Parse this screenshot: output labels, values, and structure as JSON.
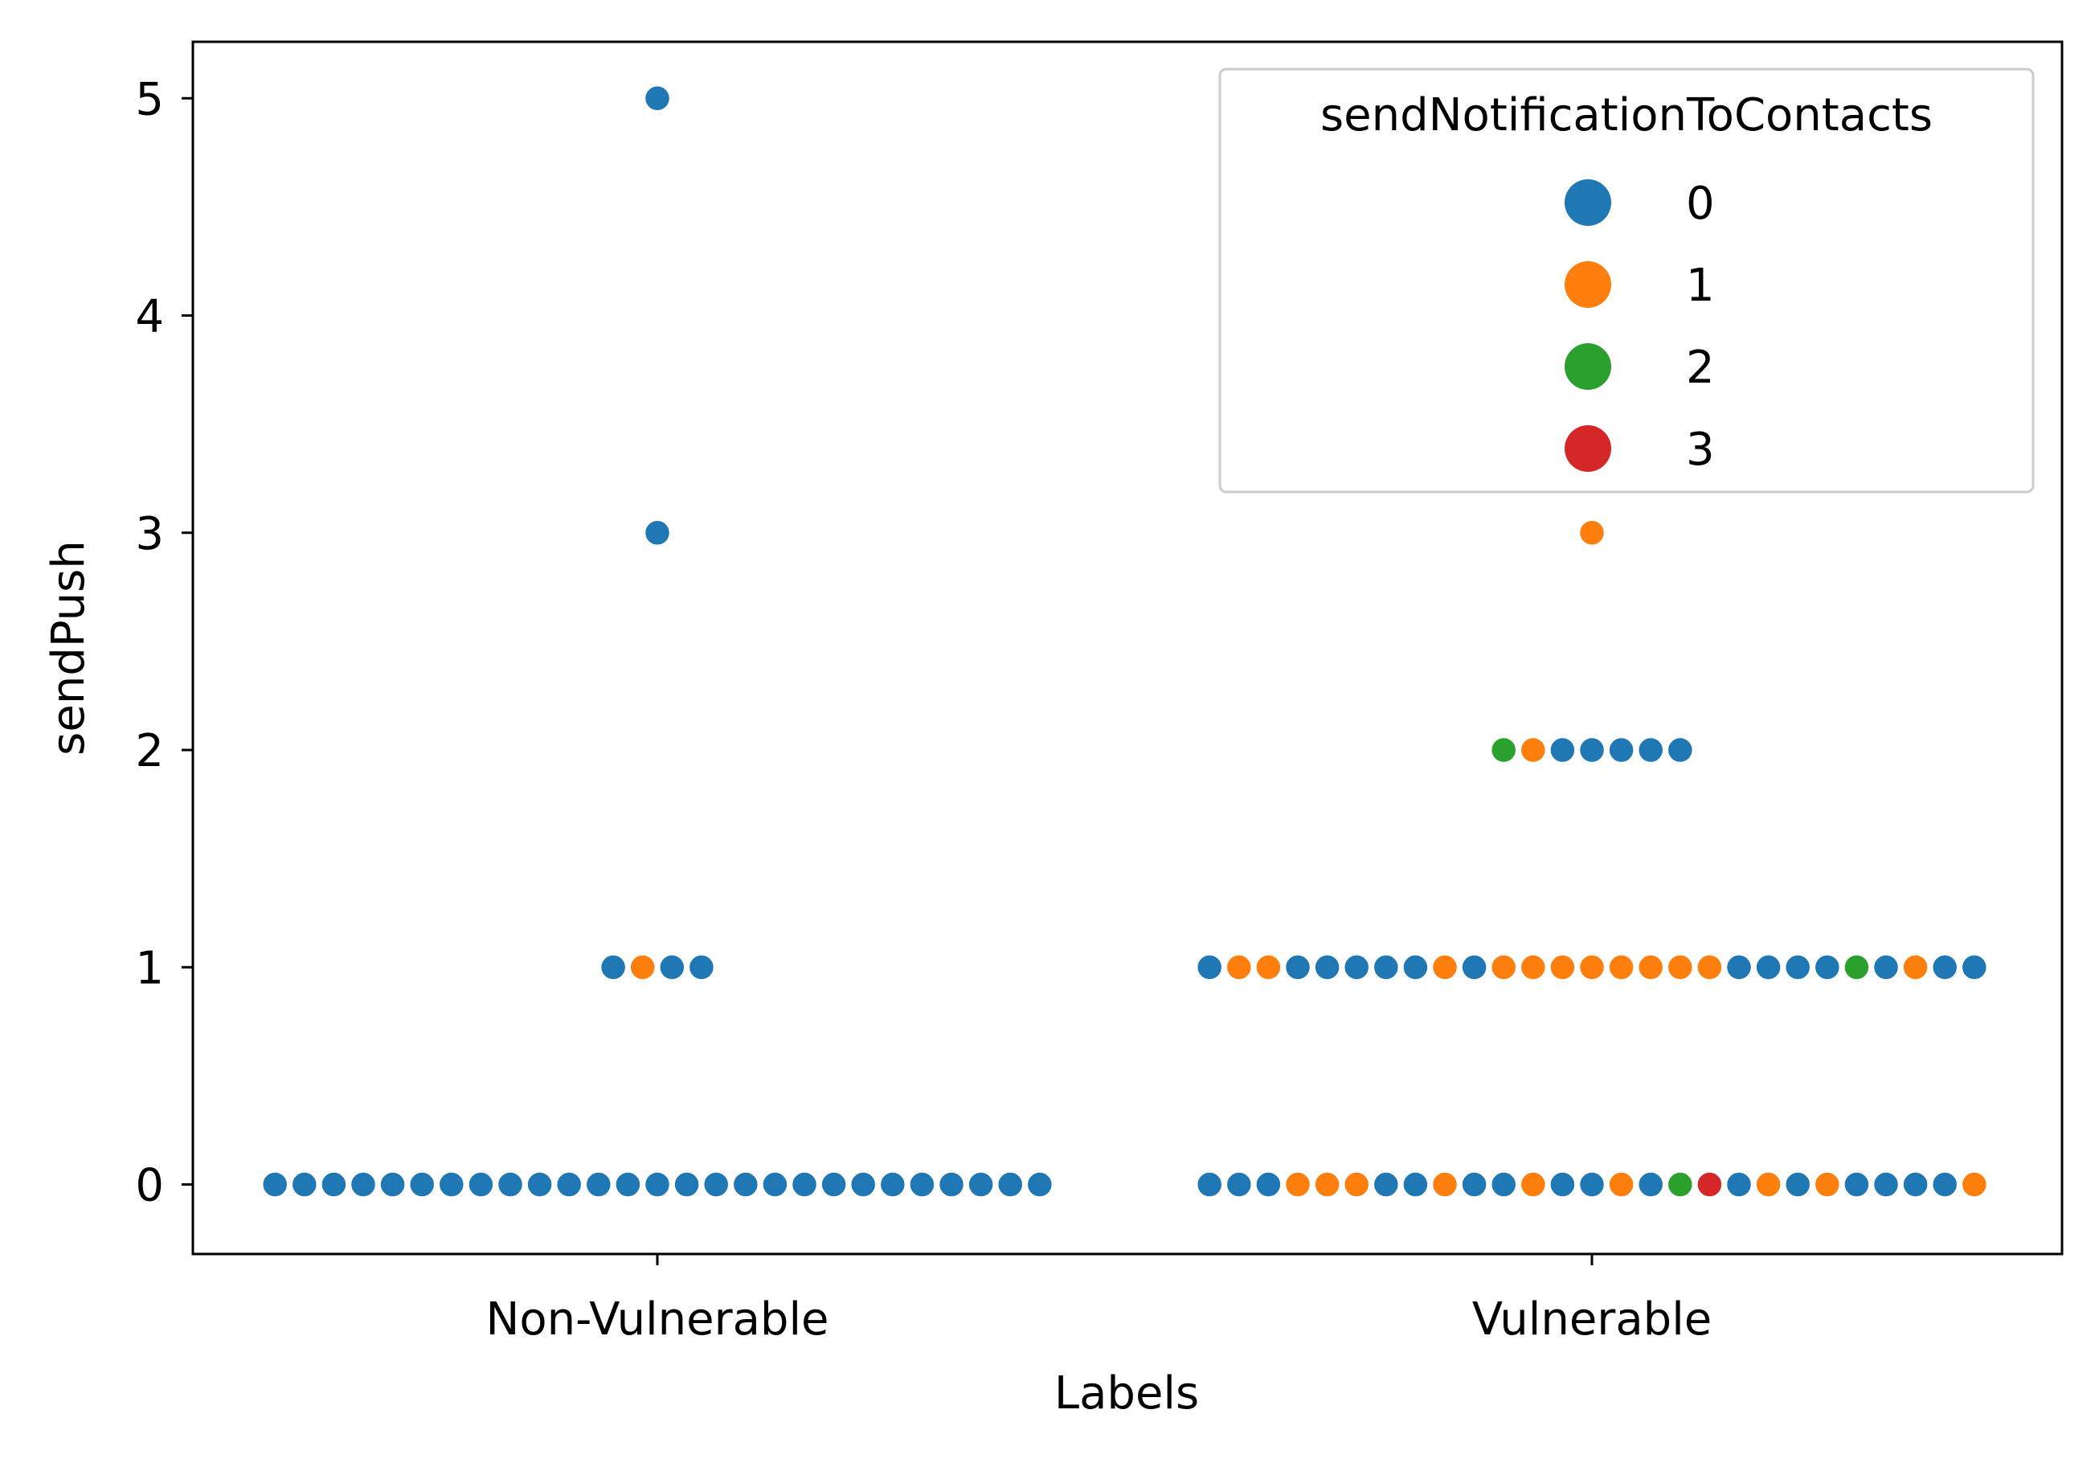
{
  "chart_data": {
    "type": "scatter",
    "subtype": "swarm",
    "title": "",
    "xlabel": "Labels",
    "ylabel": "sendPush",
    "categories": [
      "Non-Vulnerable",
      "Vulnerable"
    ],
    "yticks": [
      "0",
      "1",
      "2",
      "3",
      "4",
      "5"
    ],
    "ylim": [
      -0.32,
      5.26
    ],
    "grid": false,
    "legend": {
      "title": "sendNotificationToContacts",
      "placement": "top-right",
      "entries": [
        {
          "label": "0",
          "color": "#1f77b4"
        },
        {
          "label": "1",
          "color": "#ff7f0e"
        },
        {
          "label": "2",
          "color": "#2ca02c"
        },
        {
          "label": "3",
          "color": "#d62728"
        }
      ]
    },
    "groups": [
      {
        "category": "Non-Vulnerable",
        "y": 5,
        "hue": [
          0
        ]
      },
      {
        "category": "Non-Vulnerable",
        "y": 3,
        "hue": [
          0
        ]
      },
      {
        "category": "Non-Vulnerable",
        "y": 1,
        "hue": [
          0,
          1,
          0,
          0
        ]
      },
      {
        "category": "Non-Vulnerable",
        "y": 0,
        "hue": [
          0,
          0,
          0,
          0,
          0,
          0,
          0,
          0,
          0,
          0,
          0,
          0,
          0,
          0,
          0,
          0,
          0,
          0,
          0,
          0,
          0,
          0,
          0,
          0,
          0,
          0,
          0
        ]
      },
      {
        "category": "Vulnerable",
        "y": 3,
        "hue": [
          1
        ]
      },
      {
        "category": "Vulnerable",
        "y": 2,
        "hue": [
          2,
          1,
          0,
          0,
          0,
          0,
          0
        ]
      },
      {
        "category": "Vulnerable",
        "y": 1,
        "hue": [
          0,
          1,
          1,
          0,
          0,
          0,
          0,
          0,
          1,
          0,
          1,
          1,
          1,
          1,
          1,
          1,
          1,
          1,
          0,
          0,
          0,
          0,
          2,
          0,
          1,
          0,
          0
        ]
      },
      {
        "category": "Vulnerable",
        "y": 0,
        "hue": [
          0,
          0,
          0,
          1,
          1,
          1,
          0,
          0,
          1,
          0,
          0,
          1,
          0,
          0,
          1,
          0,
          2,
          3,
          0,
          1,
          0,
          1,
          0,
          0,
          0,
          0,
          1
        ]
      }
    ]
  }
}
